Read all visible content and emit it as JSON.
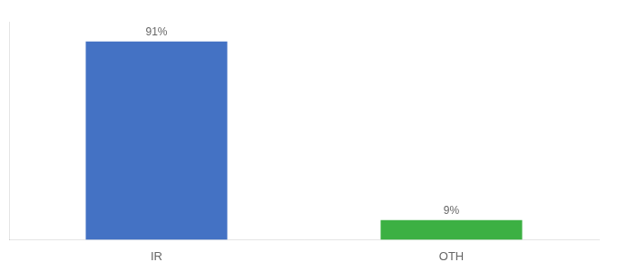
{
  "chart_data": {
    "type": "bar",
    "categories": [
      "IR",
      "OTH"
    ],
    "values": [
      91,
      9
    ],
    "value_labels": [
      "91%",
      "9%"
    ],
    "colors": [
      "#4472c4",
      "#3cb043"
    ],
    "ylim": [
      0,
      100
    ],
    "grid": false,
    "data_labels": true,
    "tick_labels": "x"
  }
}
